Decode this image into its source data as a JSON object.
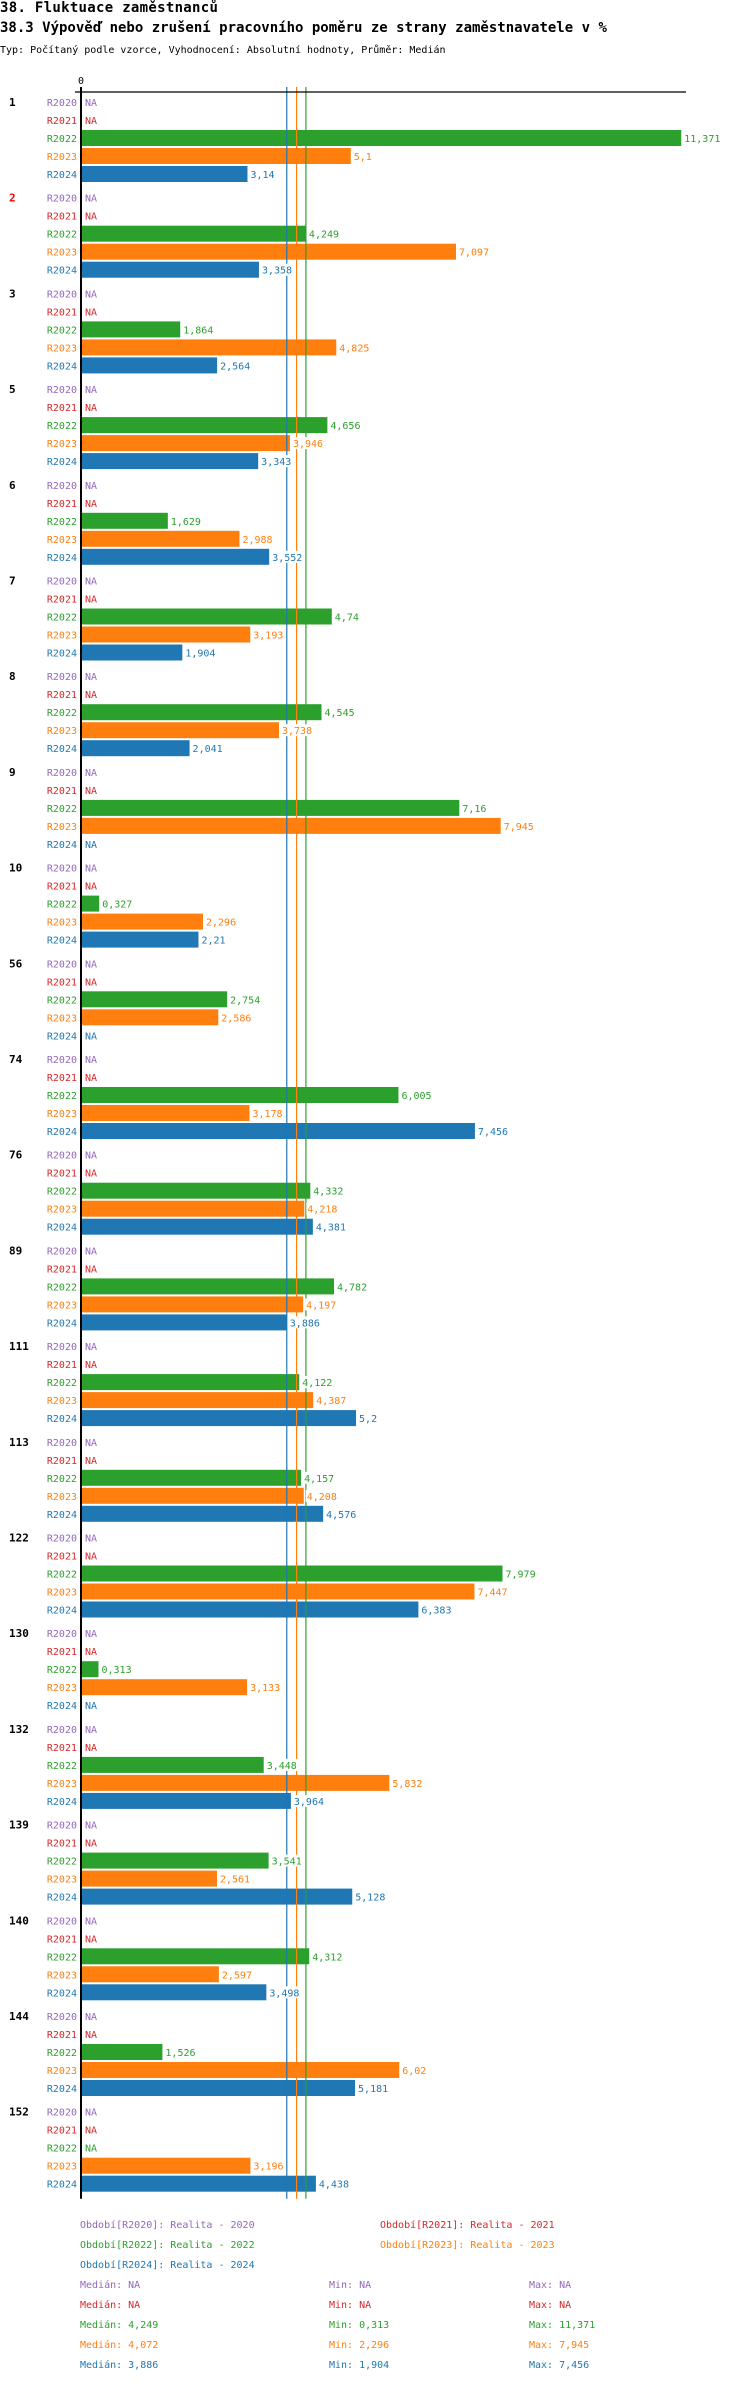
{
  "header": {
    "title": "38. Fluktuace zaměstnanců",
    "subtitle": "38.3 Výpověď nebo zrušení pracovního poměru ze strany zaměstnavatele v %",
    "type_line": "Typ: Počítaný podle vzorce, Vyhodnocení: Absolutní hodnoty, Průměr: Medián"
  },
  "colors": {
    "R2020": "#9467bd",
    "R2021": "#d62728",
    "R2022": "#2ca02c",
    "R2023": "#ff7f0e",
    "R2024": "#1f77b4",
    "highlight_group": "#ff0000"
  },
  "chart_data": {
    "type": "bar",
    "orientation": "horizontal",
    "title": "38.3 Výpověď nebo zrušení pracovního poměru ze strany zaměstnavatele v %",
    "axis_tick_label": "0",
    "xlim": [
      0,
      11.6
    ],
    "periods": [
      "R2020",
      "R2021",
      "R2022",
      "R2023",
      "R2024"
    ],
    "na_label": "NA",
    "highlighted_group": "2",
    "groups": [
      {
        "label": "1",
        "values": [
          null,
          null,
          11.371,
          5.1,
          3.14
        ],
        "labels": [
          "NA",
          "NA",
          "11,371",
          "5,1",
          "3,14"
        ]
      },
      {
        "label": "2",
        "values": [
          null,
          null,
          4.249,
          7.097,
          3.358
        ],
        "labels": [
          "NA",
          "NA",
          "4,249",
          "7,097",
          "3,358"
        ]
      },
      {
        "label": "3",
        "values": [
          null,
          null,
          1.864,
          4.825,
          2.564
        ],
        "labels": [
          "NA",
          "NA",
          "1,864",
          "4,825",
          "2,564"
        ]
      },
      {
        "label": "5",
        "values": [
          null,
          null,
          4.656,
          3.946,
          3.343
        ],
        "labels": [
          "NA",
          "NA",
          "4,656",
          "3,946",
          "3,343"
        ]
      },
      {
        "label": "6",
        "values": [
          null,
          null,
          1.629,
          2.988,
          3.552
        ],
        "labels": [
          "NA",
          "NA",
          "1,629",
          "2,988",
          "3,552"
        ]
      },
      {
        "label": "7",
        "values": [
          null,
          null,
          4.74,
          3.193,
          1.904
        ],
        "labels": [
          "NA",
          "NA",
          "4,74",
          "3,193",
          "1,904"
        ]
      },
      {
        "label": "8",
        "values": [
          null,
          null,
          4.545,
          3.738,
          2.041
        ],
        "labels": [
          "NA",
          "NA",
          "4,545",
          "3,738",
          "2,041"
        ]
      },
      {
        "label": "9",
        "values": [
          null,
          null,
          7.16,
          7.945,
          null
        ],
        "labels": [
          "NA",
          "NA",
          "7,16",
          "7,945",
          "NA"
        ]
      },
      {
        "label": "10",
        "values": [
          null,
          null,
          0.327,
          2.296,
          2.21
        ],
        "labels": [
          "NA",
          "NA",
          "0,327",
          "2,296",
          "2,21"
        ]
      },
      {
        "label": "56",
        "values": [
          null,
          null,
          2.754,
          2.586,
          null
        ],
        "labels": [
          "NA",
          "NA",
          "2,754",
          "2,586",
          "NA"
        ]
      },
      {
        "label": "74",
        "values": [
          null,
          null,
          6.005,
          3.178,
          7.456
        ],
        "labels": [
          "NA",
          "NA",
          "6,005",
          "3,178",
          "7,456"
        ]
      },
      {
        "label": "76",
        "values": [
          null,
          null,
          4.332,
          4.218,
          4.381
        ],
        "labels": [
          "NA",
          "NA",
          "4,332",
          "4,218",
          "4,381"
        ]
      },
      {
        "label": "89",
        "values": [
          null,
          null,
          4.782,
          4.197,
          3.886
        ],
        "labels": [
          "NA",
          "NA",
          "4,782",
          "4,197",
          "3,886"
        ]
      },
      {
        "label": "111",
        "values": [
          null,
          null,
          4.122,
          4.387,
          5.2
        ],
        "labels": [
          "NA",
          "NA",
          "4,122",
          "4,387",
          "5,2"
        ]
      },
      {
        "label": "113",
        "values": [
          null,
          null,
          4.157,
          4.208,
          4.576
        ],
        "labels": [
          "NA",
          "NA",
          "4,157",
          "4,208",
          "4,576"
        ]
      },
      {
        "label": "122",
        "values": [
          null,
          null,
          7.979,
          7.447,
          6.383
        ],
        "labels": [
          "NA",
          "NA",
          "7,979",
          "7,447",
          "6,383"
        ]
      },
      {
        "label": "130",
        "values": [
          null,
          null,
          0.313,
          3.133,
          null
        ],
        "labels": [
          "NA",
          "NA",
          "0,313",
          "3,133",
          "NA"
        ]
      },
      {
        "label": "132",
        "values": [
          null,
          null,
          3.448,
          5.832,
          3.964
        ],
        "labels": [
          "NA",
          "NA",
          "3,448",
          "5,832",
          "3,964"
        ]
      },
      {
        "label": "139",
        "values": [
          null,
          null,
          3.541,
          2.561,
          5.128
        ],
        "labels": [
          "NA",
          "NA",
          "3,541",
          "2,561",
          "5,128"
        ]
      },
      {
        "label": "140",
        "values": [
          null,
          null,
          4.312,
          2.597,
          3.498
        ],
        "labels": [
          "NA",
          "NA",
          "4,312",
          "2,597",
          "3,498"
        ]
      },
      {
        "label": "144",
        "values": [
          null,
          null,
          1.526,
          6.02,
          5.181
        ],
        "labels": [
          "NA",
          "NA",
          "1,526",
          "6,02",
          "5,181"
        ]
      },
      {
        "label": "152",
        "values": [
          null,
          null,
          null,
          3.196,
          4.438
        ],
        "labels": [
          "NA",
          "NA",
          "NA",
          "3,196",
          "4,438"
        ]
      }
    ],
    "median_lines": [
      {
        "period": "R2024",
        "value": 3.886
      },
      {
        "period": "R2023",
        "value": 4.072
      },
      {
        "period": "R2022",
        "value": 4.249
      }
    ]
  },
  "legend": {
    "periods": [
      {
        "key": "R2020",
        "text": "Období[R2020]: Realita - 2020"
      },
      {
        "key": "R2021",
        "text": "Období[R2021]: Realita - 2021"
      },
      {
        "key": "R2022",
        "text": "Období[R2022]: Realita - 2022"
      },
      {
        "key": "R2023",
        "text": "Období[R2023]: Realita - 2023"
      },
      {
        "key": "R2024",
        "text": "Období[R2024]: Realita - 2024"
      }
    ],
    "stats": [
      {
        "key": "R2020",
        "median": "Medián: NA",
        "min": "Min: NA",
        "max": "Max: NA"
      },
      {
        "key": "R2021",
        "median": "Medián: NA",
        "min": "Min: NA",
        "max": "Max: NA"
      },
      {
        "key": "R2022",
        "median": "Medián: 4,249",
        "min": "Min: 0,313",
        "max": "Max: 11,371"
      },
      {
        "key": "R2023",
        "median": "Medián: 4,072",
        "min": "Min: 2,296",
        "max": "Max: 7,945"
      },
      {
        "key": "R2024",
        "median": "Medián: 3,886",
        "min": "Min: 1,904",
        "max": "Max: 7,456"
      }
    ]
  }
}
